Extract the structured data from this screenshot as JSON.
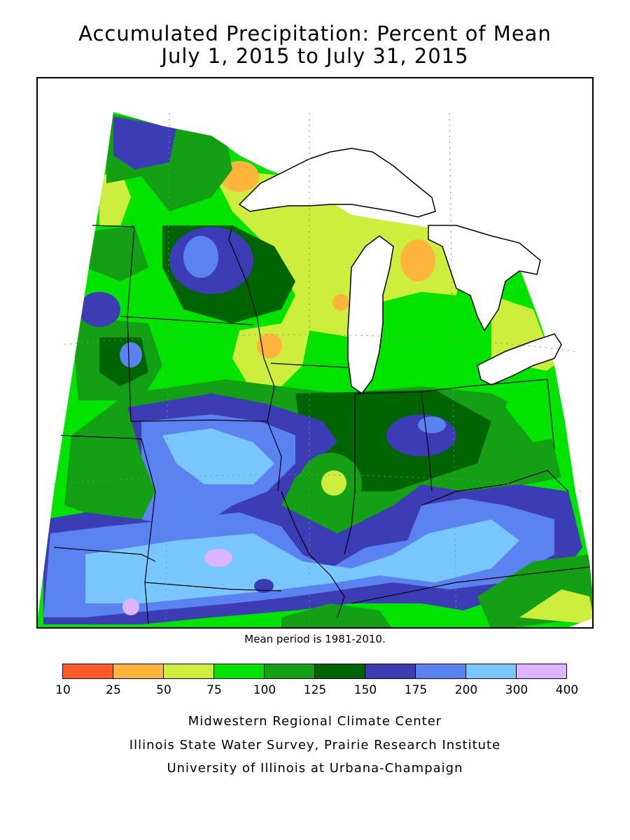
{
  "title_line1": "Accumulated Precipitation: Percent of Mean",
  "title_line2": "July 1, 2015 to July 31, 2015",
  "mean_note": "Mean period is 1981-2010.",
  "legend": {
    "colors": [
      "#ff5a28",
      "#ffb43c",
      "#cdee3c",
      "#00e400",
      "#14a014",
      "#006400",
      "#3c3cb4",
      "#5a82f0",
      "#78c8ff",
      "#dcb4ff"
    ],
    "labels": [
      "10",
      "25",
      "50",
      "75",
      "100",
      "125",
      "150",
      "175",
      "200",
      "300",
      "400"
    ]
  },
  "credits": [
    "Midwestern Regional Climate Center",
    "Illinois State Water Survey, Prairie Research Institute",
    "University of Illinois at Urbana-Champaign"
  ]
}
